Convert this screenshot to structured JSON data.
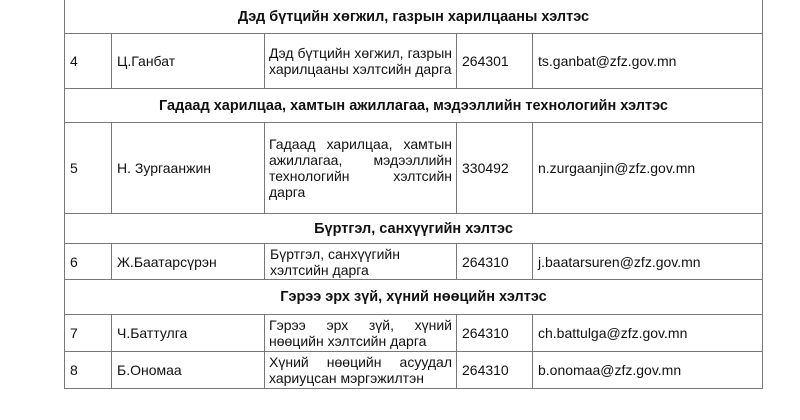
{
  "sections": [
    {
      "title": "Дэд бүтцийн хөгжил, газрын харилцааны хэлтэс"
    },
    {
      "title": "Гадаад харилцаа, хамтын ажиллагаа, мэдээллийн технологийн хэлтэс"
    },
    {
      "title": "Бүртгэл, санхүүгийн хэлтэс"
    },
    {
      "title": "Гэрээ эрх зүй, хүний нөөцийн хэлтэс"
    }
  ],
  "rows": [
    {
      "no": "4",
      "name": "Ц.Ганбат",
      "position": "Дэд бүтцийн хөгжил, газрын харилцааны хэлтсийн дарга",
      "phone": "264301",
      "email": "ts.ganbat@zfz.gov.mn"
    },
    {
      "no": "5",
      "name": "Н. Зургаанжин",
      "position": "Гадаад харилцаа, хамтын ажиллагаа, мэдээллийн технологийн хэлтсийн дарга",
      "phone": "330492",
      "email": "n.zurgaanjin@zfz.gov.mn"
    },
    {
      "no": "6",
      "name": "Ж.Баатарсүрэн",
      "position": "Бүртгэл, санхүүгийн хэлтсийн дарга",
      "phone": "264310",
      "email": "j.baatarsuren@zfz.gov.mn"
    },
    {
      "no": "7",
      "name": "Ч.Баттулга",
      "position": "Гэрээ эрх зүй, хүний нөөцийн хэлтсийн дарга",
      "phone": "264310",
      "email": "ch.battulga@zfz.gov.mn"
    },
    {
      "no": "8",
      "name": "Б.Ономаа",
      "position": "Хүний нөөцийн асуудал хариуцсан мэргэжилтэн",
      "phone": "264310",
      "email": "b.onomaa@zfz.gov.mn"
    }
  ]
}
